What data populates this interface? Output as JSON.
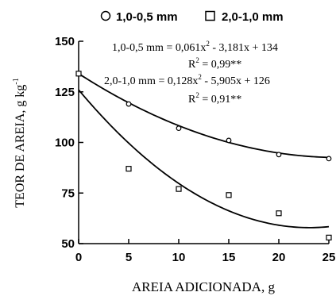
{
  "chart_data": {
    "type": "scatter",
    "xlabel": "AREIA ADICIONADA, g",
    "ylabel": "TEOR DE AREIA, g kg",
    "ylabel_superscript": "-1",
    "xlim": [
      0,
      25
    ],
    "ylim": [
      50,
      150
    ],
    "xticks": [
      "0",
      "5",
      "10",
      "15",
      "20",
      "25"
    ],
    "yticks": [
      "50",
      "75",
      "100",
      "125",
      "150"
    ],
    "grid": false,
    "legend_position": "top",
    "x": [
      0,
      5,
      10,
      15,
      20,
      25
    ],
    "series": [
      {
        "name": "1,0-0,5 mm",
        "marker": "circle",
        "values": [
          134,
          119,
          107,
          101,
          94,
          92
        ],
        "fit": {
          "a": 0.061,
          "b": -3.181,
          "c": 134
        },
        "equation": "1,0-0,5 mm = 0,061x² - 3,181x + 134",
        "r2": "R² = 0,99**"
      },
      {
        "name": "2,0-1,0 mm",
        "marker": "square",
        "values": [
          134,
          87,
          77,
          74,
          65,
          53
        ],
        "fit": {
          "a": 0.128,
          "b": -5.905,
          "c": 126
        },
        "equation": "2,0-1,0 mm = 0,128x² - 5,905x + 126",
        "r2": "R² = 0,91**"
      }
    ]
  }
}
